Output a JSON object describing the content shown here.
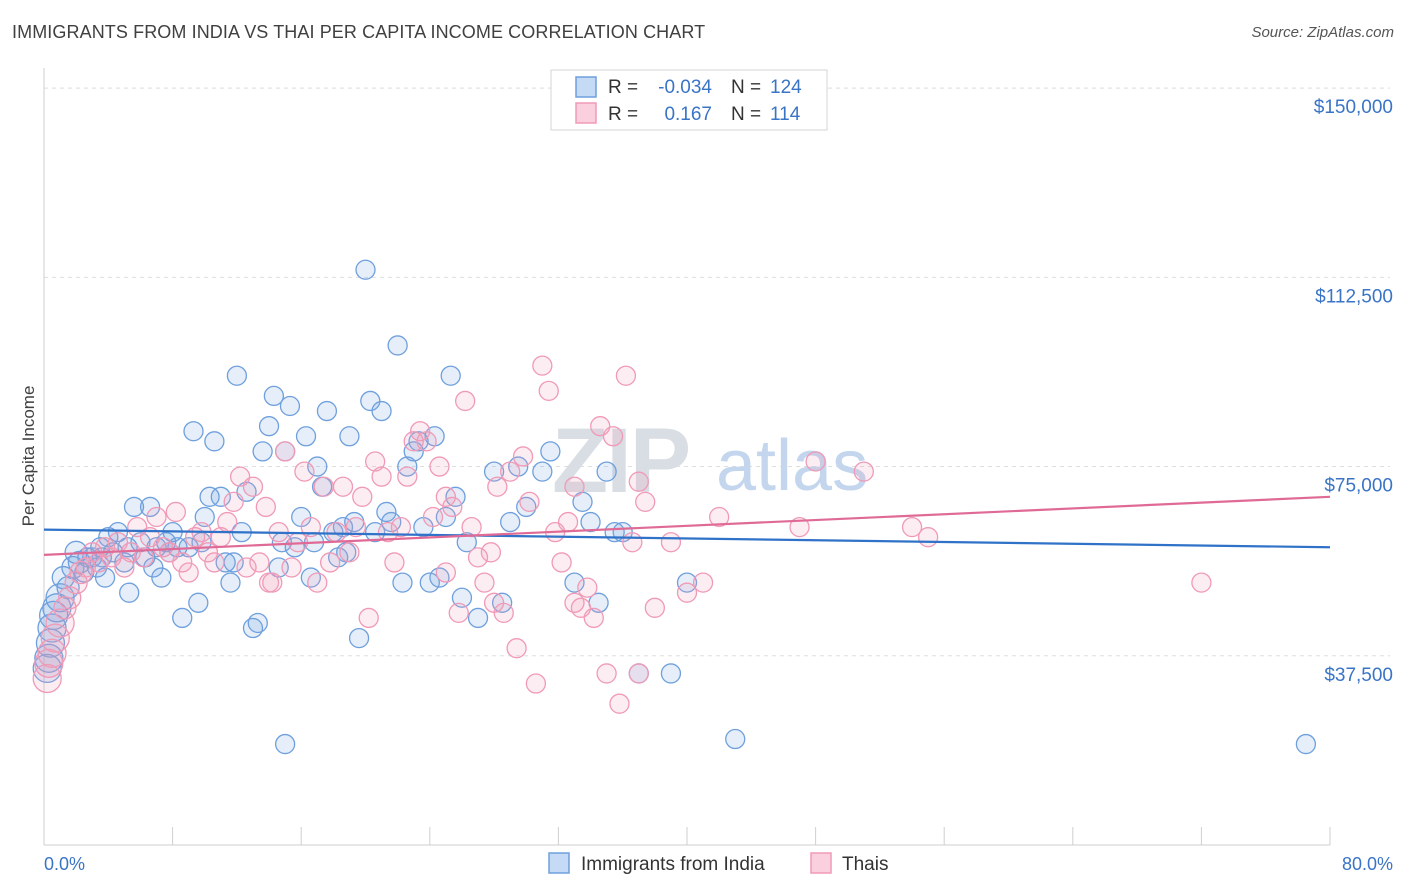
{
  "title": "IMMIGRANTS FROM INDIA VS THAI PER CAPITA INCOME CORRELATION CHART",
  "source": "Source: ZipAtlas.com",
  "watermark": {
    "part1": "ZIP",
    "part2": "atlas"
  },
  "chart_data": {
    "type": "scatter",
    "ylabel": "Per Capita Income",
    "xlim": [
      0,
      80
    ],
    "ylim": [
      0,
      152000
    ],
    "x_tick_labels": [
      "0.0%",
      "80.0%"
    ],
    "y_ticks": [
      37500,
      75000,
      112500,
      150000
    ],
    "y_tick_labels": [
      "$37,500",
      "$75,000",
      "$112,500",
      "$150,000"
    ],
    "legend": {
      "rows": [
        {
          "r_label": "R =",
          "r": "-0.034",
          "n_label": "N =",
          "n": "124"
        },
        {
          "r_label": "R =",
          "r": "0.167",
          "n_label": "N =",
          "n": "114"
        }
      ]
    },
    "series": [
      {
        "name": "Immigrants from India",
        "color": "#6fa0dd",
        "line_color": "#2f72c8",
        "trend": {
          "x0": 0,
          "y0": 62500,
          "x1": 80,
          "y1": 59000
        },
        "points": [
          [
            0.2,
            35000
          ],
          [
            0.3,
            37000
          ],
          [
            0.4,
            40000
          ],
          [
            0.5,
            43000
          ],
          [
            0.6,
            45500
          ],
          [
            0.8,
            47000
          ],
          [
            1.0,
            49000
          ],
          [
            1.2,
            53000
          ],
          [
            1.5,
            51000
          ],
          [
            1.8,
            55000
          ],
          [
            2.0,
            58000
          ],
          [
            2.2,
            56000
          ],
          [
            2.5,
            54000
          ],
          [
            3.0,
            57000
          ],
          [
            3.3,
            55000
          ],
          [
            3.5,
            59000
          ],
          [
            3.8,
            53000
          ],
          [
            4.0,
            61000
          ],
          [
            4.3,
            58000
          ],
          [
            4.6,
            62000
          ],
          [
            5.0,
            56000
          ],
          [
            5.3,
            50000
          ],
          [
            5.6,
            67000
          ],
          [
            6.0,
            60000
          ],
          [
            6.3,
            57000
          ],
          [
            6.6,
            67000
          ],
          [
            7.0,
            59000
          ],
          [
            7.3,
            53000
          ],
          [
            7.6,
            60000
          ],
          [
            8.0,
            62000
          ],
          [
            8.3,
            59000
          ],
          [
            8.6,
            45000
          ],
          [
            9.0,
            59000
          ],
          [
            9.3,
            82000
          ],
          [
            9.6,
            48000
          ],
          [
            10.0,
            65000
          ],
          [
            10.3,
            69000
          ],
          [
            10.6,
            80000
          ],
          [
            11.0,
            69000
          ],
          [
            11.3,
            56000
          ],
          [
            11.6,
            52000
          ],
          [
            12.0,
            93000
          ],
          [
            12.3,
            62000
          ],
          [
            12.6,
            70000
          ],
          [
            13.0,
            43000
          ],
          [
            13.3,
            44000
          ],
          [
            13.6,
            78000
          ],
          [
            14.0,
            83000
          ],
          [
            14.3,
            89000
          ],
          [
            14.6,
            55000
          ],
          [
            15.0,
            78000
          ],
          [
            15.3,
            87000
          ],
          [
            15.6,
            59000
          ],
          [
            16.0,
            65000
          ],
          [
            16.3,
            81000
          ],
          [
            16.6,
            53000
          ],
          [
            17.0,
            75000
          ],
          [
            17.3,
            71000
          ],
          [
            17.6,
            86000
          ],
          [
            18.0,
            62000
          ],
          [
            18.3,
            57000
          ],
          [
            18.6,
            63000
          ],
          [
            19.0,
            81000
          ],
          [
            19.3,
            64000
          ],
          [
            19.6,
            41000
          ],
          [
            20.0,
            114000
          ],
          [
            20.3,
            88000
          ],
          [
            20.6,
            62000
          ],
          [
            21.0,
            86000
          ],
          [
            21.3,
            66000
          ],
          [
            21.6,
            64000
          ],
          [
            22.0,
            99000
          ],
          [
            22.3,
            52000
          ],
          [
            22.6,
            75000
          ],
          [
            23.0,
            78000
          ],
          [
            23.3,
            80000
          ],
          [
            23.6,
            63000
          ],
          [
            24.0,
            52000
          ],
          [
            24.3,
            81000
          ],
          [
            24.6,
            53000
          ],
          [
            25.0,
            65000
          ],
          [
            25.3,
            93000
          ],
          [
            25.6,
            69000
          ],
          [
            26.0,
            49000
          ],
          [
            26.3,
            60000
          ],
          [
            27.0,
            45000
          ],
          [
            28.0,
            74000
          ],
          [
            28.5,
            48000
          ],
          [
            29.0,
            64000
          ],
          [
            29.5,
            75000
          ],
          [
            30.0,
            67000
          ],
          [
            31.0,
            74000
          ],
          [
            31.5,
            78000
          ],
          [
            33.0,
            52000
          ],
          [
            33.5,
            68000
          ],
          [
            34.0,
            64000
          ],
          [
            34.5,
            48000
          ],
          [
            35.0,
            74000
          ],
          [
            35.5,
            62000
          ],
          [
            36.0,
            62000
          ],
          [
            37.0,
            34000
          ],
          [
            39.0,
            34000
          ],
          [
            40.0,
            52000
          ],
          [
            43.0,
            21000
          ],
          [
            78.5,
            20000
          ],
          [
            15.0,
            20000
          ],
          [
            2.7,
            57000
          ],
          [
            3.6,
            57000
          ],
          [
            5.2,
            59000
          ],
          [
            6.8,
            55000
          ],
          [
            7.8,
            58000
          ],
          [
            9.8,
            60000
          ],
          [
            11.8,
            56000
          ],
          [
            14.8,
            60000
          ],
          [
            16.8,
            60000
          ],
          [
            18.8,
            58000
          ]
        ]
      },
      {
        "name": "Thais",
        "color": "#f09ab7",
        "line_color": "#e06a96",
        "trend": {
          "x0": 0,
          "y0": 57500,
          "x1": 80,
          "y1": 69000
        },
        "points": [
          [
            0.2,
            33000
          ],
          [
            0.3,
            36000
          ],
          [
            0.5,
            38000
          ],
          [
            0.7,
            41000
          ],
          [
            1.0,
            44000
          ],
          [
            1.3,
            47000
          ],
          [
            1.6,
            49000
          ],
          [
            2.0,
            52000
          ],
          [
            2.3,
            54000
          ],
          [
            2.6,
            55000
          ],
          [
            3.0,
            58000
          ],
          [
            3.4,
            56000
          ],
          [
            3.8,
            59000
          ],
          [
            4.2,
            57000
          ],
          [
            4.6,
            60000
          ],
          [
            5.0,
            55000
          ],
          [
            5.4,
            58000
          ],
          [
            5.8,
            63000
          ],
          [
            6.2,
            57000
          ],
          [
            6.6,
            61000
          ],
          [
            7.0,
            65000
          ],
          [
            7.4,
            59000
          ],
          [
            7.8,
            58000
          ],
          [
            8.2,
            66000
          ],
          [
            8.6,
            56000
          ],
          [
            9.0,
            54000
          ],
          [
            9.4,
            61000
          ],
          [
            9.8,
            62000
          ],
          [
            10.2,
            58000
          ],
          [
            10.6,
            56000
          ],
          [
            11.0,
            61000
          ],
          [
            11.4,
            64000
          ],
          [
            11.8,
            68000
          ],
          [
            12.2,
            73000
          ],
          [
            12.6,
            55000
          ],
          [
            13.0,
            71000
          ],
          [
            13.4,
            56000
          ],
          [
            13.8,
            67000
          ],
          [
            14.2,
            52000
          ],
          [
            14.6,
            62000
          ],
          [
            15.0,
            78000
          ],
          [
            15.4,
            55000
          ],
          [
            15.8,
            60000
          ],
          [
            16.2,
            74000
          ],
          [
            16.6,
            63000
          ],
          [
            17.0,
            52000
          ],
          [
            17.4,
            71000
          ],
          [
            17.8,
            56000
          ],
          [
            18.2,
            62000
          ],
          [
            18.6,
            71000
          ],
          [
            19.0,
            58000
          ],
          [
            19.4,
            63000
          ],
          [
            19.8,
            69000
          ],
          [
            20.2,
            45000
          ],
          [
            20.6,
            76000
          ],
          [
            21.0,
            73000
          ],
          [
            21.4,
            62000
          ],
          [
            21.8,
            56000
          ],
          [
            22.2,
            63000
          ],
          [
            22.6,
            73000
          ],
          [
            23.0,
            80000
          ],
          [
            23.4,
            82000
          ],
          [
            23.8,
            80000
          ],
          [
            24.2,
            65000
          ],
          [
            24.6,
            75000
          ],
          [
            25.0,
            69000
          ],
          [
            25.4,
            67000
          ],
          [
            25.8,
            46000
          ],
          [
            26.2,
            88000
          ],
          [
            26.6,
            63000
          ],
          [
            27.0,
            57000
          ],
          [
            27.4,
            52000
          ],
          [
            27.8,
            58000
          ],
          [
            28.2,
            71000
          ],
          [
            28.6,
            46000
          ],
          [
            29.0,
            74000
          ],
          [
            29.4,
            39000
          ],
          [
            29.8,
            77000
          ],
          [
            30.2,
            68000
          ],
          [
            30.6,
            32000
          ],
          [
            31.0,
            95000
          ],
          [
            31.4,
            90000
          ],
          [
            31.8,
            62000
          ],
          [
            32.2,
            56000
          ],
          [
            32.6,
            64000
          ],
          [
            33.0,
            71000
          ],
          [
            33.4,
            47000
          ],
          [
            33.8,
            51000
          ],
          [
            34.2,
            45000
          ],
          [
            34.6,
            83000
          ],
          [
            35.0,
            34000
          ],
          [
            35.4,
            81000
          ],
          [
            35.8,
            28000
          ],
          [
            36.2,
            93000
          ],
          [
            36.6,
            60000
          ],
          [
            37.0,
            72000
          ],
          [
            37.4,
            68000
          ],
          [
            38.0,
            47000
          ],
          [
            39.0,
            60000
          ],
          [
            40.0,
            50000
          ],
          [
            41.0,
            52000
          ],
          [
            42.0,
            65000
          ],
          [
            47.0,
            63000
          ],
          [
            48.0,
            76000
          ],
          [
            51.0,
            74000
          ],
          [
            54.0,
            63000
          ],
          [
            55.0,
            61000
          ],
          [
            72.0,
            52000
          ],
          [
            37.0,
            34000
          ],
          [
            25.0,
            54000
          ],
          [
            28.0,
            48000
          ],
          [
            33.0,
            48000
          ],
          [
            14.0,
            52000
          ]
        ]
      }
    ]
  }
}
